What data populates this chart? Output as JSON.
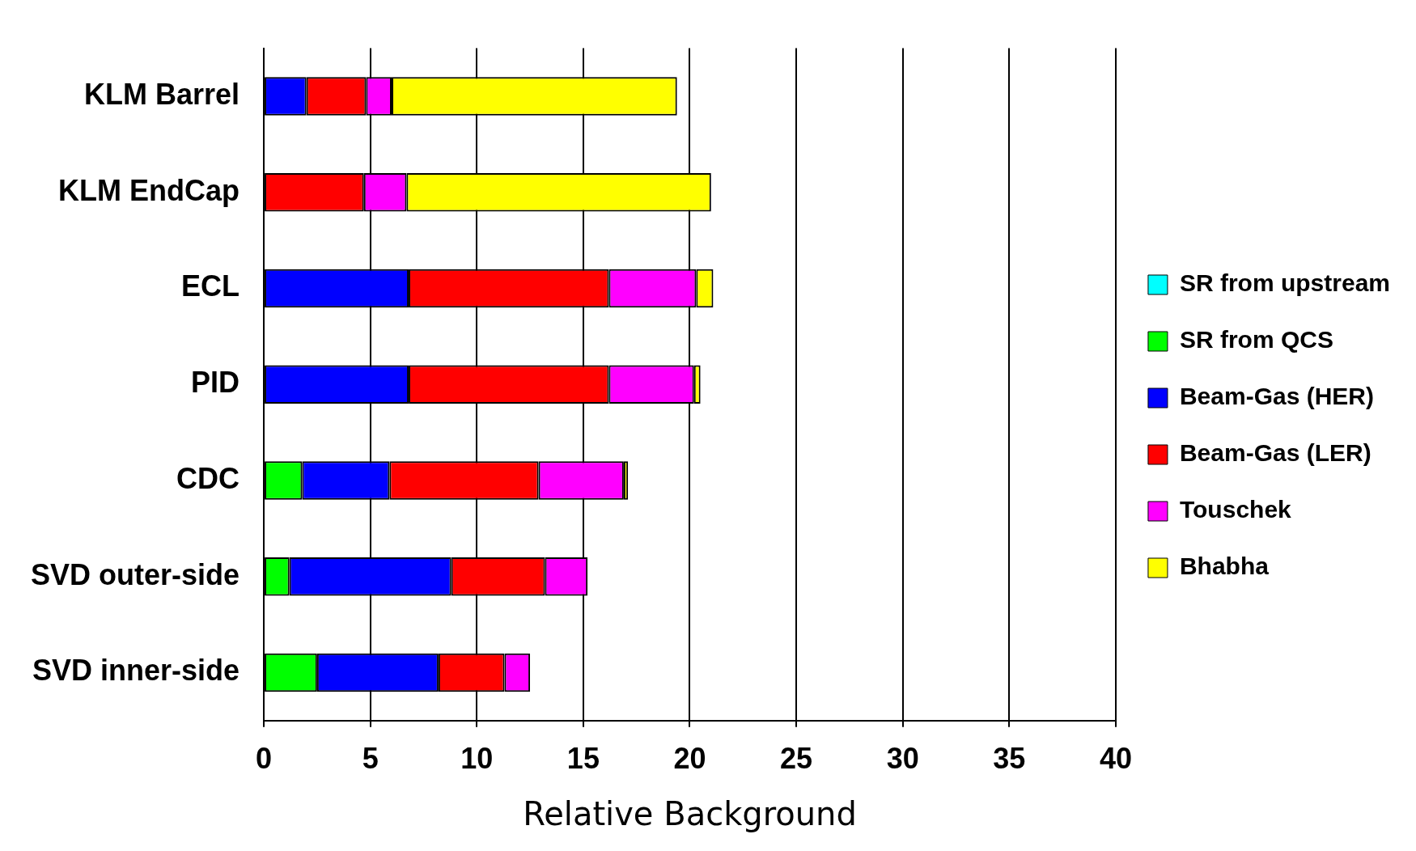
{
  "chart_data": {
    "type": "bar",
    "orientation": "horizontal",
    "stacked": true,
    "categories": [
      "KLM Barrel",
      "KLM EndCap",
      "ECL",
      "PID",
      "CDC",
      "SVD outer-side",
      "SVD inner-side"
    ],
    "series": [
      {
        "name": "SR from upstream",
        "color": "#00ffff",
        "values": [
          null,
          null,
          null,
          null,
          null,
          null,
          null
        ]
      },
      {
        "name": "SR from QCS",
        "color": "#00ff00",
        "values": [
          0,
          0,
          0,
          0,
          1.8,
          1.2,
          2.5
        ]
      },
      {
        "name": "Beam-Gas (HER)",
        "color": "#0000ff",
        "values": [
          2.0,
          0,
          6.8,
          6.8,
          4.1,
          7.6,
          5.7
        ]
      },
      {
        "name": "Beam-Gas (LER)",
        "color": "#ff0000",
        "values": [
          2.8,
          4.7,
          9.4,
          9.4,
          7.0,
          4.4,
          3.1
        ]
      },
      {
        "name": "Touschek",
        "color": "#ff00ff",
        "values": [
          1.2,
          2.0,
          4.1,
          4.0,
          4.0,
          2.0,
          1.2
        ]
      },
      {
        "name": "Bhabha",
        "color": "#ffff00",
        "values": [
          13.4,
          14.3,
          0.8,
          0.3,
          0.2,
          0,
          0
        ]
      }
    ],
    "xlabel": "Relative Background",
    "xlim": [
      0,
      40
    ],
    "xticks": [
      0,
      5,
      10,
      15,
      20,
      25,
      30,
      35,
      40
    ],
    "grid": "x",
    "legend": "right"
  }
}
